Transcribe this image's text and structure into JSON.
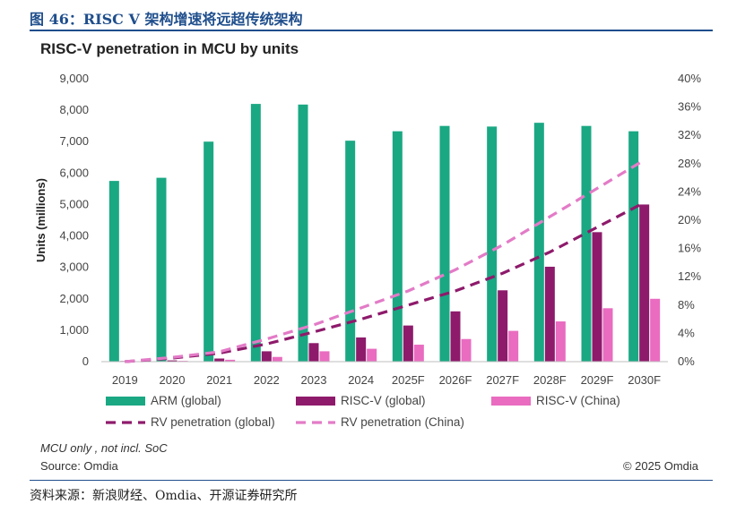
{
  "figure": {
    "title": "图 46：RISC V 架构增速将远超传统架构",
    "footer": "资料来源：新浪财经、Omdia、开源证券研究所"
  },
  "chart_notes": {
    "note": "MCU only , not incl. SoC",
    "source": "Source: Omdia",
    "copyright": "© 2025 Omdia"
  },
  "colors": {
    "arm": "#1aa883",
    "riscv_global": "#8e1a6b",
    "riscv_china": "#e96cc0",
    "pen_global": "#8e1a6b",
    "pen_china": "#e37bc7",
    "accent": "#1f4e8c"
  },
  "chart_data": {
    "type": "bar",
    "title": "RISC-V penetration in MCU by units",
    "ylabel": "Units (millions)",
    "xlabel": "",
    "ylim": [
      0,
      9000
    ],
    "y2lim": [
      0,
      0.4
    ],
    "yticks": [
      "0",
      "1,000",
      "2,000",
      "3,000",
      "4,000",
      "5,000",
      "6,000",
      "7,000",
      "8,000",
      "9,000"
    ],
    "y2ticks": [
      "0%",
      "4%",
      "8%",
      "12%",
      "16%",
      "20%",
      "24%",
      "28%",
      "32%",
      "36%",
      "40%"
    ],
    "categories": [
      "2019",
      "2020",
      "2021",
      "2022",
      "2023",
      "2024",
      "2025F",
      "2026F",
      "2027F",
      "2028F",
      "2029F",
      "2030F"
    ],
    "series": [
      {
        "name": "ARM (global)",
        "kind": "bar",
        "axis": "left",
        "values": [
          5750,
          5850,
          7000,
          8200,
          8180,
          7030,
          7330,
          7500,
          7480,
          7600,
          7500,
          7330
        ]
      },
      {
        "name": "RISC-V (global)",
        "kind": "bar",
        "axis": "left",
        "values": [
          20,
          40,
          100,
          330,
          590,
          770,
          1150,
          1600,
          2270,
          3020,
          4120,
          5000
        ]
      },
      {
        "name": "RISC-V (China)",
        "kind": "bar",
        "axis": "left",
        "values": [
          10,
          25,
          60,
          150,
          330,
          410,
          540,
          720,
          980,
          1280,
          1700,
          2000
        ]
      },
      {
        "name": "RV penetration (global)",
        "kind": "line",
        "axis": "right",
        "values": [
          0.0,
          0.005,
          0.012,
          0.025,
          0.042,
          0.06,
          0.08,
          0.1,
          0.125,
          0.155,
          0.19,
          0.225
        ]
      },
      {
        "name": "RV penetration (China)",
        "kind": "line",
        "axis": "right",
        "values": [
          0.0,
          0.006,
          0.014,
          0.032,
          0.052,
          0.076,
          0.1,
          0.13,
          0.165,
          0.205,
          0.245,
          0.285
        ]
      }
    ],
    "legend_position": "bottom"
  }
}
